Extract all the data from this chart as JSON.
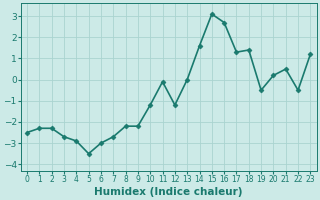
{
  "x": [
    0,
    1,
    2,
    3,
    4,
    5,
    6,
    7,
    8,
    9,
    10,
    11,
    12,
    13,
    14,
    15,
    16,
    17,
    18,
    19,
    20,
    21,
    22,
    23
  ],
  "y": [
    -2.5,
    -2.3,
    -2.3,
    -2.7,
    -2.9,
    -3.5,
    -3.0,
    -2.7,
    -2.2,
    -2.2,
    -1.2,
    -0.1,
    -1.2,
    0.0,
    1.6,
    3.1,
    2.7,
    1.3,
    1.4,
    -0.5,
    0.2,
    0.5,
    -0.5,
    1.2
  ],
  "line_color": "#1a7a6e",
  "marker": "D",
  "marker_size": 2.5,
  "bg_color": "#cceae7",
  "grid_color": "#aad4d0",
  "xlabel": "Humidex (Indice chaleur)",
  "xlim": [
    -0.5,
    23.5
  ],
  "ylim": [
    -4.3,
    3.6
  ],
  "yticks": [
    -4,
    -3,
    -2,
    -1,
    0,
    1,
    2,
    3
  ],
  "xticks": [
    0,
    1,
    2,
    3,
    4,
    5,
    6,
    7,
    8,
    9,
    10,
    11,
    12,
    13,
    14,
    15,
    16,
    17,
    18,
    19,
    20,
    21,
    22,
    23
  ],
  "x_tick_fontsize": 5.5,
  "y_tick_fontsize": 6.5,
  "xlabel_fontsize": 7.5,
  "line_width": 1.2
}
